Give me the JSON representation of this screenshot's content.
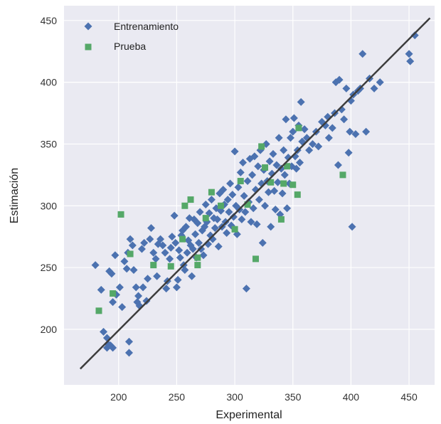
{
  "chart_data": {
    "type": "scatter",
    "title": "",
    "xlabel": "Experimental",
    "ylabel": "Estimación",
    "xlim": [
      153,
      472
    ],
    "ylim": [
      155,
      462
    ],
    "xticks": [
      200,
      250,
      300,
      350,
      400,
      450
    ],
    "yticks": [
      200,
      250,
      300,
      350,
      400,
      450
    ],
    "grid": true,
    "legend": "top-left",
    "series": [
      {
        "name": "Entrenamiento",
        "marker": "diamond",
        "color": "#4c72b0",
        "points": [
          [
            180,
            252
          ],
          [
            185,
            232
          ],
          [
            187,
            198
          ],
          [
            190,
            185
          ],
          [
            190,
            193
          ],
          [
            191,
            188
          ],
          [
            193,
            187
          ],
          [
            195,
            185
          ],
          [
            192,
            247
          ],
          [
            194,
            245
          ],
          [
            195,
            222
          ],
          [
            197,
            260
          ],
          [
            198,
            228
          ],
          [
            201,
            234
          ],
          [
            203,
            218
          ],
          [
            205,
            255
          ],
          [
            207,
            249
          ],
          [
            208,
            262
          ],
          [
            209,
            181
          ],
          [
            209,
            190
          ],
          [
            210,
            273
          ],
          [
            212,
            268
          ],
          [
            213,
            248
          ],
          [
            215,
            234
          ],
          [
            216,
            222
          ],
          [
            217,
            227
          ],
          [
            218,
            219
          ],
          [
            220,
            265
          ],
          [
            221,
            234
          ],
          [
            222,
            270
          ],
          [
            224,
            223
          ],
          [
            225,
            241
          ],
          [
            227,
            273
          ],
          [
            228,
            282
          ],
          [
            230,
            262
          ],
          [
            232,
            257
          ],
          [
            233,
            243
          ],
          [
            234,
            269
          ],
          [
            236,
            273
          ],
          [
            238,
            268
          ],
          [
            240,
            262
          ],
          [
            241,
            233
          ],
          [
            242,
            239
          ],
          [
            244,
            257
          ],
          [
            245,
            266
          ],
          [
            246,
            275
          ],
          [
            248,
            292
          ],
          [
            249,
            270
          ],
          [
            250,
            234
          ],
          [
            251,
            240
          ],
          [
            252,
            264
          ],
          [
            253,
            258
          ],
          [
            254,
            276
          ],
          [
            255,
            280
          ],
          [
            256,
            252
          ],
          [
            257,
            248
          ],
          [
            258,
            283
          ],
          [
            259,
            262
          ],
          [
            260,
            272
          ],
          [
            261,
            290
          ],
          [
            262,
            268
          ],
          [
            263,
            243
          ],
          [
            264,
            265
          ],
          [
            265,
            289
          ],
          [
            266,
            277
          ],
          [
            267,
            258
          ],
          [
            268,
            286
          ],
          [
            269,
            270
          ],
          [
            270,
            295
          ],
          [
            271,
            265
          ],
          [
            272,
            280
          ],
          [
            273,
            260
          ],
          [
            274,
            283
          ],
          [
            275,
            301
          ],
          [
            276,
            287
          ],
          [
            277,
            269
          ],
          [
            278,
            294
          ],
          [
            279,
            276
          ],
          [
            280,
            305
          ],
          [
            281,
            273
          ],
          [
            282,
            290
          ],
          [
            283,
            282
          ],
          [
            284,
            298
          ],
          [
            285,
            289
          ],
          [
            286,
            267
          ],
          [
            287,
            310
          ],
          [
            288,
            296
          ],
          [
            289,
            283
          ],
          [
            290,
            313
          ],
          [
            291,
            301
          ],
          [
            292,
            287
          ],
          [
            293,
            278
          ],
          [
            294,
            305
          ],
          [
            295,
            295
          ],
          [
            296,
            318
          ],
          [
            297,
            284
          ],
          [
            298,
            309
          ],
          [
            299,
            291
          ],
          [
            300,
            344
          ],
          [
            301,
            300
          ],
          [
            302,
            277
          ],
          [
            303,
            315
          ],
          [
            304,
            297
          ],
          [
            305,
            327
          ],
          [
            306,
            289
          ],
          [
            307,
            335
          ],
          [
            308,
            308
          ],
          [
            309,
            295
          ],
          [
            310,
            233
          ],
          [
            311,
            320
          ],
          [
            312,
            303
          ],
          [
            313,
            338
          ],
          [
            314,
            287
          ],
          [
            315,
            325
          ],
          [
            316,
            298
          ],
          [
            317,
            340
          ],
          [
            318,
            313
          ],
          [
            319,
            285
          ],
          [
            320,
            332
          ],
          [
            321,
            305
          ],
          [
            322,
            345
          ],
          [
            323,
            318
          ],
          [
            324,
            270
          ],
          [
            325,
            329
          ],
          [
            326,
            300
          ],
          [
            327,
            350
          ],
          [
            328,
            320
          ],
          [
            329,
            311
          ],
          [
            330,
            336
          ],
          [
            331,
            283
          ],
          [
            332,
            326
          ],
          [
            333,
            342
          ],
          [
            334,
            312
          ],
          [
            335,
            297
          ],
          [
            336,
            333
          ],
          [
            337,
            319
          ],
          [
            338,
            355
          ],
          [
            339,
            293
          ],
          [
            340,
            330
          ],
          [
            341,
            310
          ],
          [
            342,
            345
          ],
          [
            343,
            325
          ],
          [
            344,
            370
          ],
          [
            345,
            298
          ],
          [
            346,
            339
          ],
          [
            347,
            318
          ],
          [
            348,
            355
          ],
          [
            349,
            332
          ],
          [
            350,
            360
          ],
          [
            351,
            371
          ],
          [
            352,
            340
          ],
          [
            353,
            330
          ],
          [
            354,
            345
          ],
          [
            355,
            365
          ],
          [
            356,
            335
          ],
          [
            357,
            384
          ],
          [
            358,
            352
          ],
          [
            360,
            362
          ],
          [
            362,
            355
          ],
          [
            364,
            345
          ],
          [
            367,
            350
          ],
          [
            370,
            360
          ],
          [
            372,
            348
          ],
          [
            375,
            368
          ],
          [
            378,
            365
          ],
          [
            380,
            372
          ],
          [
            381,
            355
          ],
          [
            384,
            363
          ],
          [
            386,
            375
          ],
          [
            387,
            400
          ],
          [
            389,
            333
          ],
          [
            390,
            402
          ],
          [
            392,
            378
          ],
          [
            394,
            370
          ],
          [
            396,
            395
          ],
          [
            398,
            343
          ],
          [
            399,
            360
          ],
          [
            400,
            385
          ],
          [
            401,
            283
          ],
          [
            402,
            390
          ],
          [
            404,
            358
          ],
          [
            406,
            393
          ],
          [
            408,
            395
          ],
          [
            410,
            423
          ],
          [
            413,
            360
          ],
          [
            416,
            403
          ],
          [
            420,
            395
          ],
          [
            425,
            400
          ],
          [
            450,
            423
          ],
          [
            451,
            417
          ],
          [
            455,
            438
          ]
        ]
      },
      {
        "name": "Prueba",
        "marker": "square",
        "color": "#55a868",
        "points": [
          [
            183,
            215
          ],
          [
            195,
            229
          ],
          [
            202,
            293
          ],
          [
            210,
            261
          ],
          [
            230,
            252
          ],
          [
            245,
            251
          ],
          [
            255,
            273
          ],
          [
            257,
            300
          ],
          [
            262,
            305
          ],
          [
            268,
            258
          ],
          [
            268,
            252
          ],
          [
            275,
            290
          ],
          [
            280,
            311
          ],
          [
            288,
            300
          ],
          [
            300,
            281
          ],
          [
            305,
            320
          ],
          [
            311,
            301
          ],
          [
            318,
            257
          ],
          [
            323,
            348
          ],
          [
            326,
            331
          ],
          [
            331,
            319
          ],
          [
            340,
            289
          ],
          [
            342,
            318
          ],
          [
            345,
            332
          ],
          [
            350,
            317
          ],
          [
            354,
            309
          ],
          [
            355,
            363
          ],
          [
            393,
            325
          ]
        ]
      }
    ],
    "reference_line": {
      "x": [
        167,
        468
      ],
      "y": [
        168,
        452
      ],
      "color": "#3d3d3d"
    }
  }
}
